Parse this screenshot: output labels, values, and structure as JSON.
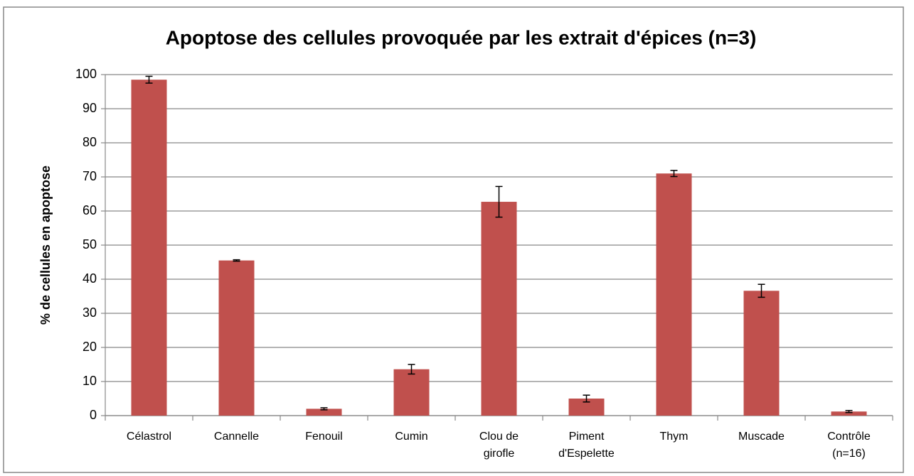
{
  "chart_data": {
    "type": "bar",
    "title": "Apoptose des cellules provoquée par les extrait d'épices (n=3)",
    "ylabel": "% de cellules en apoptose",
    "categories": [
      "Célastrol",
      "Cannelle",
      "Fenouil",
      "Cumin",
      "Clou de girofle",
      "Piment d'Espelette",
      "Thym",
      "Muscade",
      "Contrôle (n=16)"
    ],
    "values": [
      98.5,
      45.5,
      2,
      13.6,
      62.7,
      5,
      71,
      36.6,
      1.2
    ],
    "errors": [
      1,
      0.2,
      0.3,
      1.4,
      4.5,
      1,
      0.9,
      1.9,
      0.3
    ],
    "color": "#c0504d",
    "ylim": [
      0,
      100
    ],
    "yticks": [
      0,
      10,
      20,
      30,
      40,
      50,
      60,
      70,
      80,
      90,
      100
    ],
    "grid": true
  }
}
